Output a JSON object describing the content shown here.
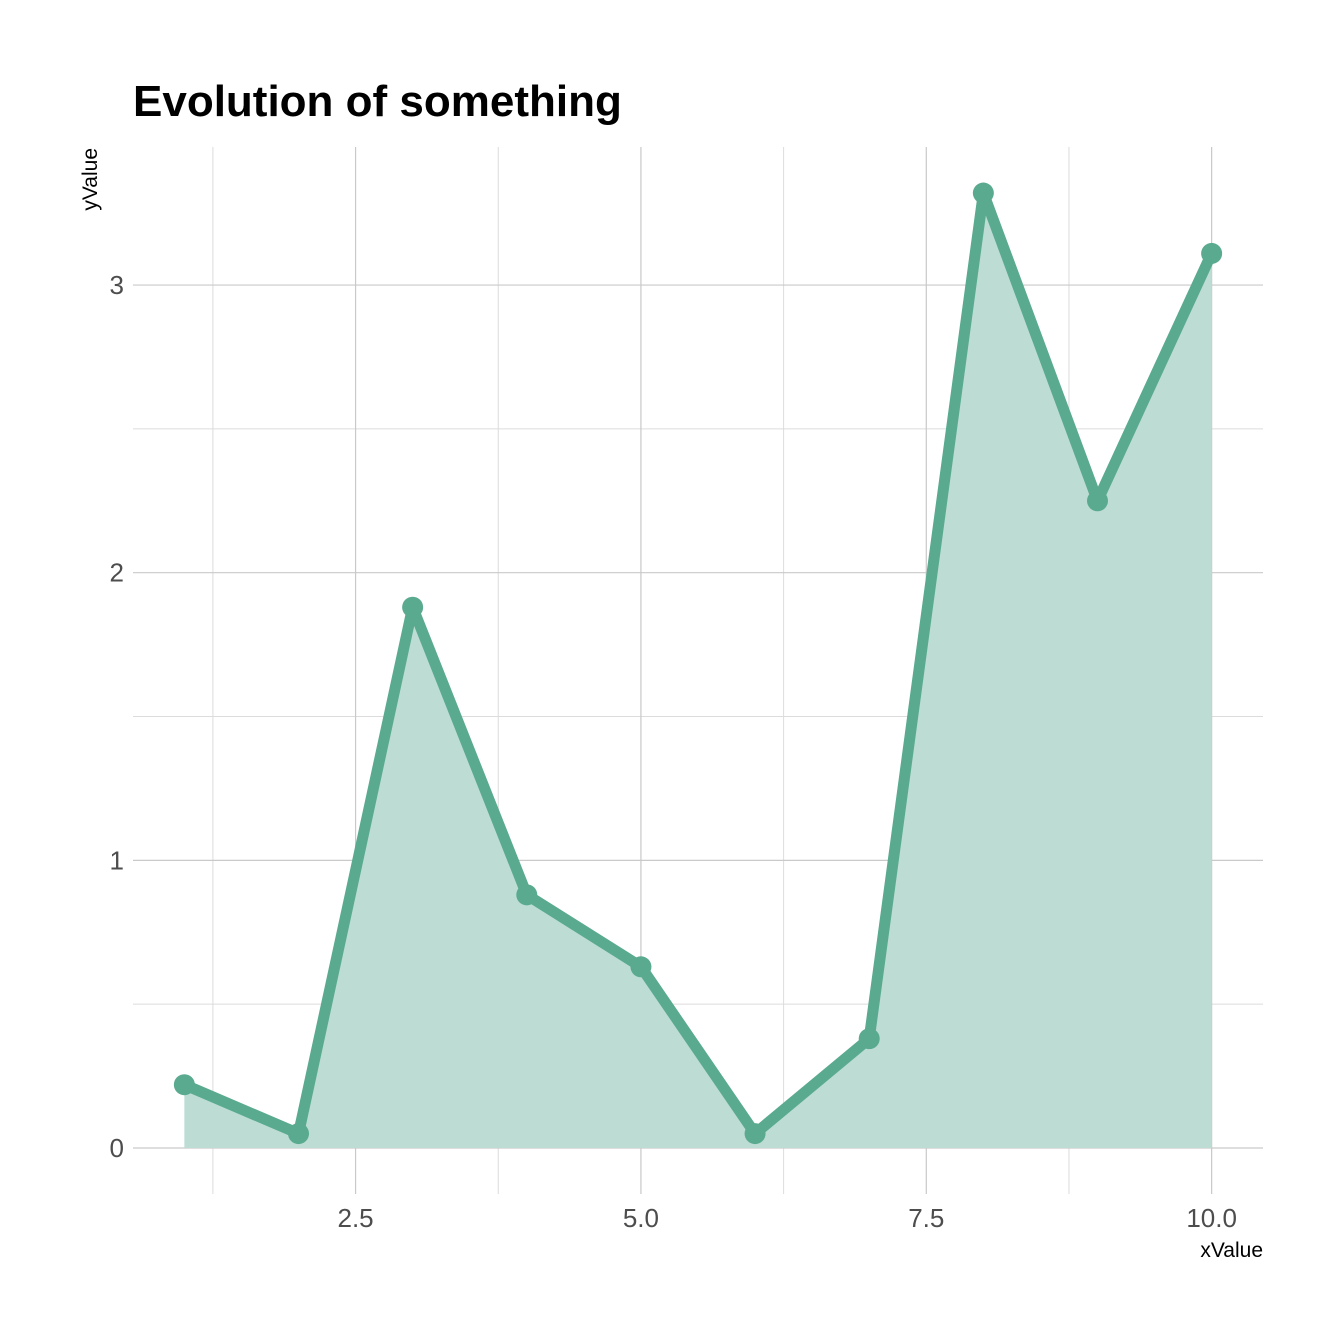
{
  "chart_data": {
    "type": "area",
    "title": "Evolution of something",
    "xlabel": "xValue",
    "ylabel": "yValue",
    "x": [
      1,
      2,
      3,
      4,
      5,
      6,
      7,
      8,
      9,
      10
    ],
    "series": [
      {
        "values": [
          0.22,
          0.05,
          1.88,
          0.88,
          0.63,
          0.05,
          0.38,
          3.32,
          2.25,
          3.11
        ]
      }
    ],
    "xlim": [
      0.55,
      10.45
    ],
    "ylim": [
      -0.16,
      3.48
    ],
    "xticks": [
      2.5,
      5.0,
      7.5,
      10.0
    ],
    "xtick_labels": [
      "2.5",
      "5.0",
      "7.5",
      "10.0"
    ],
    "yticks": [
      0,
      1,
      2,
      3
    ],
    "ytick_labels": [
      "0",
      "1",
      "2",
      "3"
    ],
    "grid": true,
    "legend": "none",
    "colors": {
      "line": "#5aaa8f",
      "fill": "#bcdcd4",
      "grid": "#c9c9c9"
    }
  }
}
